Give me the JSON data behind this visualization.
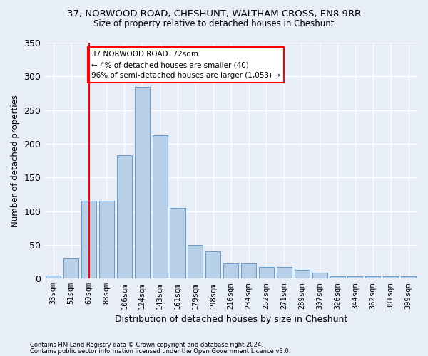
{
  "title1": "37, NORWOOD ROAD, CHESHUNT, WALTHAM CROSS, EN8 9RR",
  "title2": "Size of property relative to detached houses in Cheshunt",
  "xlabel": "Distribution of detached houses by size in Cheshunt",
  "ylabel": "Number of detached properties",
  "footnote1": "Contains HM Land Registry data © Crown copyright and database right 2024.",
  "footnote2": "Contains public sector information licensed under the Open Government Licence v3.0.",
  "categories": [
    "33sqm",
    "51sqm",
    "69sqm",
    "88sqm",
    "106sqm",
    "124sqm",
    "143sqm",
    "161sqm",
    "179sqm",
    "198sqm",
    "216sqm",
    "234sqm",
    "252sqm",
    "271sqm",
    "289sqm",
    "307sqm",
    "326sqm",
    "344sqm",
    "362sqm",
    "381sqm",
    "399sqm"
  ],
  "values": [
    5,
    30,
    115,
    115,
    183,
    285,
    213,
    105,
    50,
    40,
    22,
    22,
    17,
    17,
    13,
    9,
    4,
    3,
    3,
    3,
    3
  ],
  "bar_color": "#b8cfe8",
  "bar_edge_color": "#6699cc",
  "vline_x": 2.0,
  "vline_color": "red",
  "annotation_text": "37 NORWOOD ROAD: 72sqm\n← 4% of detached houses are smaller (40)\n96% of semi-detached houses are larger (1,053) →",
  "annotation_box_color": "white",
  "annotation_box_edge": "red",
  "background_color": "#e8eef8",
  "grid_color": "white",
  "ylim": [
    0,
    350
  ],
  "yticks": [
    0,
    50,
    100,
    150,
    200,
    250,
    300,
    350
  ]
}
